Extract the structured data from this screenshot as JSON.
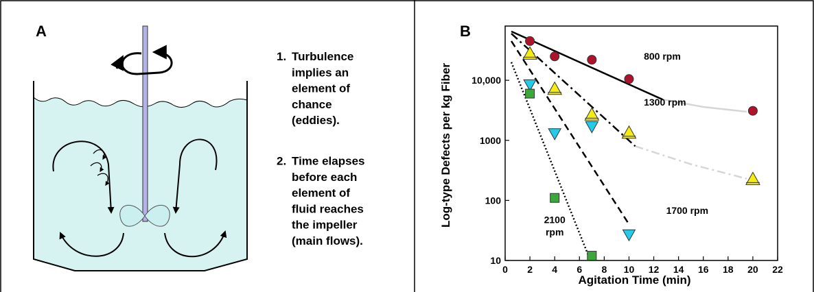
{
  "panel_a": {
    "letter": "A",
    "list": [
      {
        "num": "1.",
        "lines": [
          "Turbulence",
          "implies an",
          "element of",
          "chance",
          "(eddies)."
        ]
      },
      {
        "num": "2.",
        "lines": [
          "Time elapses",
          "before each",
          "element of",
          "fluid reaches",
          "the impeller",
          "(main flows)."
        ]
      }
    ],
    "icons": [
      "rotation-arrow-icon",
      "impeller-icon",
      "tank-icon"
    ]
  },
  "panel_b": {
    "letter": "B"
  },
  "chart_data": {
    "type": "scatter",
    "xlabel": "Agitation Time  (min)",
    "ylabel": "Log-type Defects per kg Fiber",
    "xlim": [
      0,
      22
    ],
    "ylim": [
      10,
      80000
    ],
    "yscale": "log",
    "x_ticks": [
      "0",
      "2",
      "4",
      "6",
      "8",
      "10",
      "12",
      "14",
      "16",
      "18",
      "20",
      "22"
    ],
    "y_ticks": [
      {
        "value": 10,
        "label": "10"
      },
      {
        "value": 100,
        "label": "100"
      },
      {
        "value": 1000,
        "label": "1000"
      },
      {
        "value": 10000,
        "label": "10,000"
      }
    ],
    "series": [
      {
        "name": "800 rpm",
        "marker": "circle",
        "color": "#b0112b",
        "line": "solid",
        "points": [
          [
            2,
            45000
          ],
          [
            4,
            25000
          ],
          [
            7,
            22000
          ],
          [
            10,
            10500
          ],
          [
            20,
            3100
          ]
        ],
        "fit": [
          [
            0.5,
            65000
          ],
          [
            12.7,
            4800
          ]
        ],
        "extension": [
          [
            12.7,
            4800
          ],
          [
            16,
            3600
          ],
          [
            19.5,
            3000
          ]
        ],
        "label_pos": [
          11.2,
          22000
        ]
      },
      {
        "name": "1300 rpm",
        "marker": "triangle-up",
        "color": "#f5ec10",
        "line": "dashdot",
        "points": [
          [
            2,
            27000
          ],
          [
            4,
            7000
          ],
          [
            7,
            2600
          ],
          [
            10,
            1300
          ],
          [
            20,
            220
          ]
        ],
        "fit": [
          [
            0.5,
            60000
          ],
          [
            10.5,
            800
          ]
        ],
        "extension": [
          [
            10.5,
            800
          ],
          [
            15,
            400
          ],
          [
            19.5,
            230
          ]
        ],
        "label_pos": [
          11.2,
          3800
        ]
      },
      {
        "name": "1700 rpm",
        "marker": "triangle-down",
        "color": "#22cbe8",
        "line": "dashed",
        "points": [
          [
            2,
            8500
          ],
          [
            4,
            1300
          ],
          [
            7,
            1700
          ],
          [
            10,
            27
          ]
        ],
        "fit": [
          [
            0.5,
            45000
          ],
          [
            10,
            40
          ]
        ],
        "label_pos": [
          13,
          60
        ]
      },
      {
        "name": "2100",
        "name_line2": "rpm",
        "marker": "square",
        "color": "#3aa83a",
        "line": "dotted",
        "points": [
          [
            2,
            6000
          ],
          [
            4,
            110
          ],
          [
            7,
            12
          ]
        ],
        "fit": [
          [
            0.5,
            20000
          ],
          [
            6.8,
            11
          ]
        ],
        "label_pos": [
          4,
          42
        ]
      }
    ]
  }
}
